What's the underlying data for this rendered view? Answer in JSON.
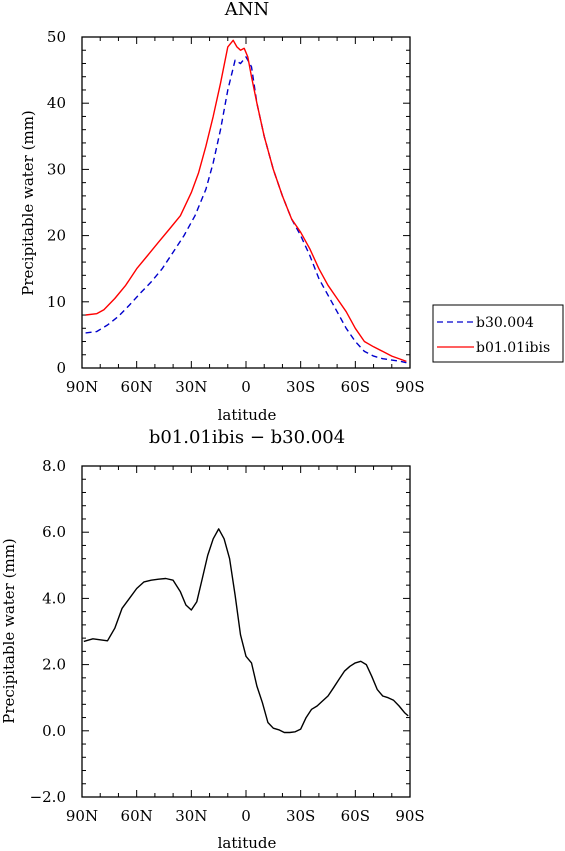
{
  "chart_data": [
    {
      "type": "line",
      "title": "ANN",
      "xlabel": "latitude",
      "ylabel": "Precipitable water (mm)",
      "xlim": [
        90,
        -90
      ],
      "ylim": [
        0,
        50
      ],
      "x_ticks": [
        {
          "v": 90,
          "label": "90N"
        },
        {
          "v": 60,
          "label": "60N"
        },
        {
          "v": 30,
          "label": "30N"
        },
        {
          "v": 0,
          "label": "0"
        },
        {
          "v": -30,
          "label": "30S"
        },
        {
          "v": -60,
          "label": "60S"
        },
        {
          "v": -90,
          "label": "90S"
        }
      ],
      "y_ticks": [
        {
          "v": 0,
          "label": "0"
        },
        {
          "v": 10,
          "label": "10"
        },
        {
          "v": 20,
          "label": "20"
        },
        {
          "v": 30,
          "label": "30"
        },
        {
          "v": 40,
          "label": "40"
        },
        {
          "v": 50,
          "label": "50"
        }
      ],
      "legend": {
        "placement": "right-bottom"
      },
      "series": [
        {
          "name": "b30.004",
          "color": "#0000cc",
          "dash": "dashed",
          "x": [
            88,
            82,
            76,
            70,
            64,
            58,
            52,
            46,
            40,
            34,
            28,
            22,
            18,
            14,
            10,
            6,
            3,
            0,
            -3,
            -6,
            -10,
            -15,
            -20,
            -25,
            -30,
            -35,
            -40,
            -45,
            -50,
            -55,
            -60,
            -65,
            -70,
            -75,
            -80,
            -85,
            -88
          ],
          "y": [
            5.3,
            5.5,
            6.5,
            7.8,
            9.5,
            11.3,
            13,
            15,
            17.5,
            20,
            23,
            27,
            31,
            36,
            42,
            46.5,
            46,
            47,
            45.5,
            40,
            35,
            30,
            26,
            22.5,
            20,
            17,
            13.5,
            11,
            8.5,
            6,
            4,
            2.5,
            1.8,
            1.4,
            1.2,
            1,
            0.8
          ]
        },
        {
          "name": "b01.01ibis",
          "color": "#ff0000",
          "dash": "solid",
          "x": [
            88,
            82,
            78,
            72,
            66,
            60,
            54,
            48,
            42,
            36,
            30,
            26,
            22,
            18,
            14,
            10,
            7,
            5,
            3,
            1,
            -1,
            -3,
            -6,
            -10,
            -15,
            -20,
            -25,
            -30,
            -35,
            -40,
            -45,
            -50,
            -55,
            -60,
            -65,
            -70,
            -75,
            -80,
            -85,
            -88
          ],
          "y": [
            8,
            8.2,
            8.8,
            10.5,
            12.5,
            15,
            17,
            19,
            21,
            23,
            26.5,
            29.5,
            33.5,
            38,
            43,
            48.5,
            49.5,
            48.5,
            48,
            48.3,
            47,
            44,
            40,
            35,
            30,
            26,
            22.5,
            20.5,
            18,
            15,
            12.5,
            10.5,
            8.5,
            6,
            4,
            3.2,
            2.5,
            1.8,
            1.3,
            1
          ]
        }
      ]
    },
    {
      "type": "line",
      "title": "b01.01ibis − b30.004",
      "xlabel": "latitude",
      "ylabel": "Precipitable water (mm)",
      "xlim": [
        90,
        -90
      ],
      "ylim": [
        -2,
        8
      ],
      "x_ticks": [
        {
          "v": 90,
          "label": "90N"
        },
        {
          "v": 60,
          "label": "60N"
        },
        {
          "v": 30,
          "label": "30N"
        },
        {
          "v": 0,
          "label": "0"
        },
        {
          "v": -30,
          "label": "30S"
        },
        {
          "v": -60,
          "label": "60S"
        },
        {
          "v": -90,
          "label": "90S"
        }
      ],
      "y_ticks": [
        {
          "v": -2,
          "label": "−2.0"
        },
        {
          "v": 0,
          "label": "0.0"
        },
        {
          "v": 2,
          "label": "2.0"
        },
        {
          "v": 4,
          "label": "4.0"
        },
        {
          "v": 6,
          "label": "6.0"
        },
        {
          "v": 8,
          "label": "8.0"
        }
      ],
      "series": [
        {
          "color": "#000000",
          "dash": "solid",
          "x": [
            89,
            84,
            80,
            76,
            72,
            68,
            64,
            60,
            56,
            52,
            48,
            44,
            40,
            36,
            33,
            30,
            27,
            24,
            21,
            18,
            15,
            12,
            9,
            6,
            3,
            0,
            -3,
            -6,
            -9,
            -12,
            -15,
            -18,
            -21,
            -24,
            -27,
            -30,
            -33,
            -36,
            -39,
            -42,
            -45,
            -48,
            -51,
            -54,
            -57,
            -60,
            -63,
            -66,
            -69,
            -72,
            -75,
            -78,
            -81,
            -84,
            -87,
            -89
          ],
          "y": [
            2.7,
            2.78,
            2.75,
            2.72,
            3.1,
            3.7,
            4.0,
            4.3,
            4.5,
            4.55,
            4.58,
            4.6,
            4.55,
            4.2,
            3.8,
            3.65,
            3.9,
            4.6,
            5.3,
            5.8,
            6.1,
            5.8,
            5.2,
            4.1,
            2.9,
            2.25,
            2.05,
            1.35,
            0.85,
            0.25,
            0.08,
            0.03,
            -0.05,
            -0.05,
            -0.03,
            0.05,
            0.4,
            0.65,
            0.75,
            0.9,
            1.05,
            1.3,
            1.55,
            1.8,
            1.95,
            2.05,
            2.1,
            2.0,
            1.65,
            1.25,
            1.05,
            1.0,
            0.92,
            0.75,
            0.55,
            0.45
          ]
        }
      ]
    }
  ]
}
